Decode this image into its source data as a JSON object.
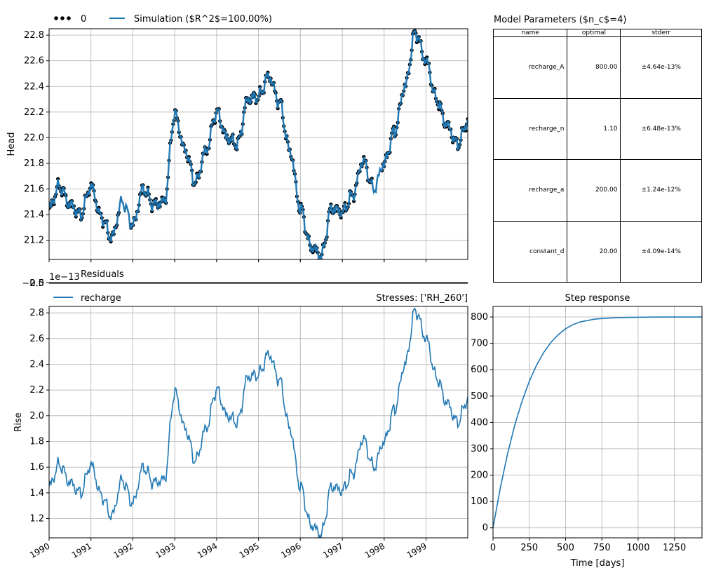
{
  "chart_data": [
    {
      "panel": "head",
      "type": "line",
      "ylabel": "Head",
      "ylim": [
        21.05,
        22.85
      ],
      "yticks": [
        "21.2",
        "21.4",
        "21.6",
        "21.8",
        "22.0",
        "22.2",
        "22.4",
        "22.6",
        "22.8"
      ],
      "xlim": [
        "1990-01-01",
        "1999-12-31"
      ],
      "legend": {
        "placement": "top-left",
        "items": [
          "0",
          "Simulation ($R^2$=100.00%)"
        ]
      },
      "series": [
        {
          "name": "0",
          "style": "dots",
          "color": "#000000"
        },
        {
          "name": "Simulation ($R^2$=100.00%)",
          "style": "line",
          "color": "#1f77b4"
        }
      ],
      "x": [
        "1990-01-01",
        "1990-04-01",
        "1990-07-01",
        "1990-10-01",
        "1991-01-01",
        "1991-04-01",
        "1991-07-01",
        "1991-10-01",
        "1992-01-01",
        "1992-04-01",
        "1992-07-01",
        "1992-10-01",
        "1993-01-01",
        "1993-04-01",
        "1993-07-01",
        "1993-10-01",
        "1994-01-01",
        "1994-04-01",
        "1994-07-01",
        "1994-10-01",
        "1995-01-01",
        "1995-04-01",
        "1995-07-01",
        "1995-10-01",
        "1996-01-01",
        "1996-04-01",
        "1996-07-01",
        "1996-10-01",
        "1997-01-01",
        "1997-04-01",
        "1997-07-01",
        "1997-10-01",
        "1998-01-01",
        "1998-04-01",
        "1998-07-01",
        "1998-10-01",
        "1999-01-01",
        "1999-04-01",
        "1999-07-01",
        "1999-10-01",
        "1999-12-31"
      ],
      "values": [
        21.45,
        21.62,
        21.48,
        21.4,
        21.62,
        21.38,
        21.22,
        21.5,
        21.32,
        21.6,
        21.48,
        21.5,
        22.18,
        21.9,
        21.65,
        21.9,
        22.2,
        22.0,
        21.95,
        22.3,
        22.32,
        22.48,
        22.28,
        21.9,
        21.45,
        21.15,
        21.08,
        21.45,
        21.42,
        21.55,
        21.82,
        21.6,
        21.8,
        22.05,
        22.4,
        22.82,
        22.6,
        22.3,
        22.1,
        21.95,
        22.12
      ]
    },
    {
      "panel": "residuals",
      "type": "line",
      "title": "Residuals",
      "yticks": [
        "−2.5",
        "0.0",
        "2.5"
      ],
      "offset_text": "1e−13"
    },
    {
      "panel": "recharge",
      "type": "line",
      "ylabel": "Rise",
      "ylim": [
        1.05,
        2.85
      ],
      "yticks": [
        "1.2",
        "1.4",
        "1.6",
        "1.8",
        "2.0",
        "2.2",
        "2.4",
        "2.6",
        "2.8"
      ],
      "xticks": [
        "1990",
        "1991",
        "1992",
        "1993",
        "1994",
        "1995",
        "1996",
        "1997",
        "1998",
        "1999"
      ],
      "legend": {
        "placement": "top-left",
        "items": [
          "recharge"
        ]
      },
      "right_title": "Stresses: ['RH_260']",
      "series": [
        {
          "name": "recharge",
          "color": "#1f77b4"
        }
      ],
      "values": [
        1.45,
        1.62,
        1.48,
        1.4,
        1.62,
        1.38,
        1.22,
        1.5,
        1.32,
        1.6,
        1.48,
        1.5,
        2.18,
        1.9,
        1.65,
        1.9,
        2.2,
        2.0,
        1.95,
        2.3,
        2.32,
        2.48,
        2.28,
        1.9,
        1.45,
        1.15,
        1.08,
        1.45,
        1.42,
        1.55,
        1.82,
        1.6,
        1.8,
        2.05,
        2.4,
        2.82,
        2.6,
        2.3,
        2.1,
        1.95,
        2.12
      ]
    },
    {
      "panel": "step",
      "type": "line",
      "title": "Step response",
      "xlabel": "Time [days]",
      "xlim": [
        0,
        1440
      ],
      "ylim": [
        -38,
        840
      ],
      "xticks": [
        "0",
        "250",
        "500",
        "750",
        "1000",
        "1250"
      ],
      "yticks": [
        "0",
        "100",
        "200",
        "300",
        "400",
        "500",
        "600",
        "700",
        "800"
      ],
      "series": [
        {
          "name": "step",
          "color": "#1f77b4"
        }
      ],
      "x": [
        0,
        50,
        100,
        150,
        200,
        250,
        300,
        350,
        400,
        450,
        500,
        550,
        600,
        700,
        800,
        900,
        1000,
        1100,
        1200,
        1300,
        1440
      ],
      "values": [
        0,
        150,
        280,
        390,
        480,
        556,
        617,
        666,
        704,
        733,
        755,
        771,
        781,
        792,
        796,
        798,
        799,
        799.5,
        800,
        800,
        800
      ]
    }
  ],
  "table": {
    "title": "Model Parameters ($n_c$=4)",
    "headers": [
      "name",
      "optimal",
      "stderr"
    ],
    "rows": [
      [
        "recharge_A",
        "800.00",
        "±4.64e-13%"
      ],
      [
        "recharge_n",
        "1.10",
        "±6.48e-13%"
      ],
      [
        "recharge_a",
        "200.00",
        "±1.24e-12%"
      ],
      [
        "constant_d",
        "20.00",
        "±4.09e-14%"
      ]
    ]
  },
  "colors": {
    "series": "#1f77b4",
    "observations": "#000000",
    "grid": "#b0b0b0"
  }
}
